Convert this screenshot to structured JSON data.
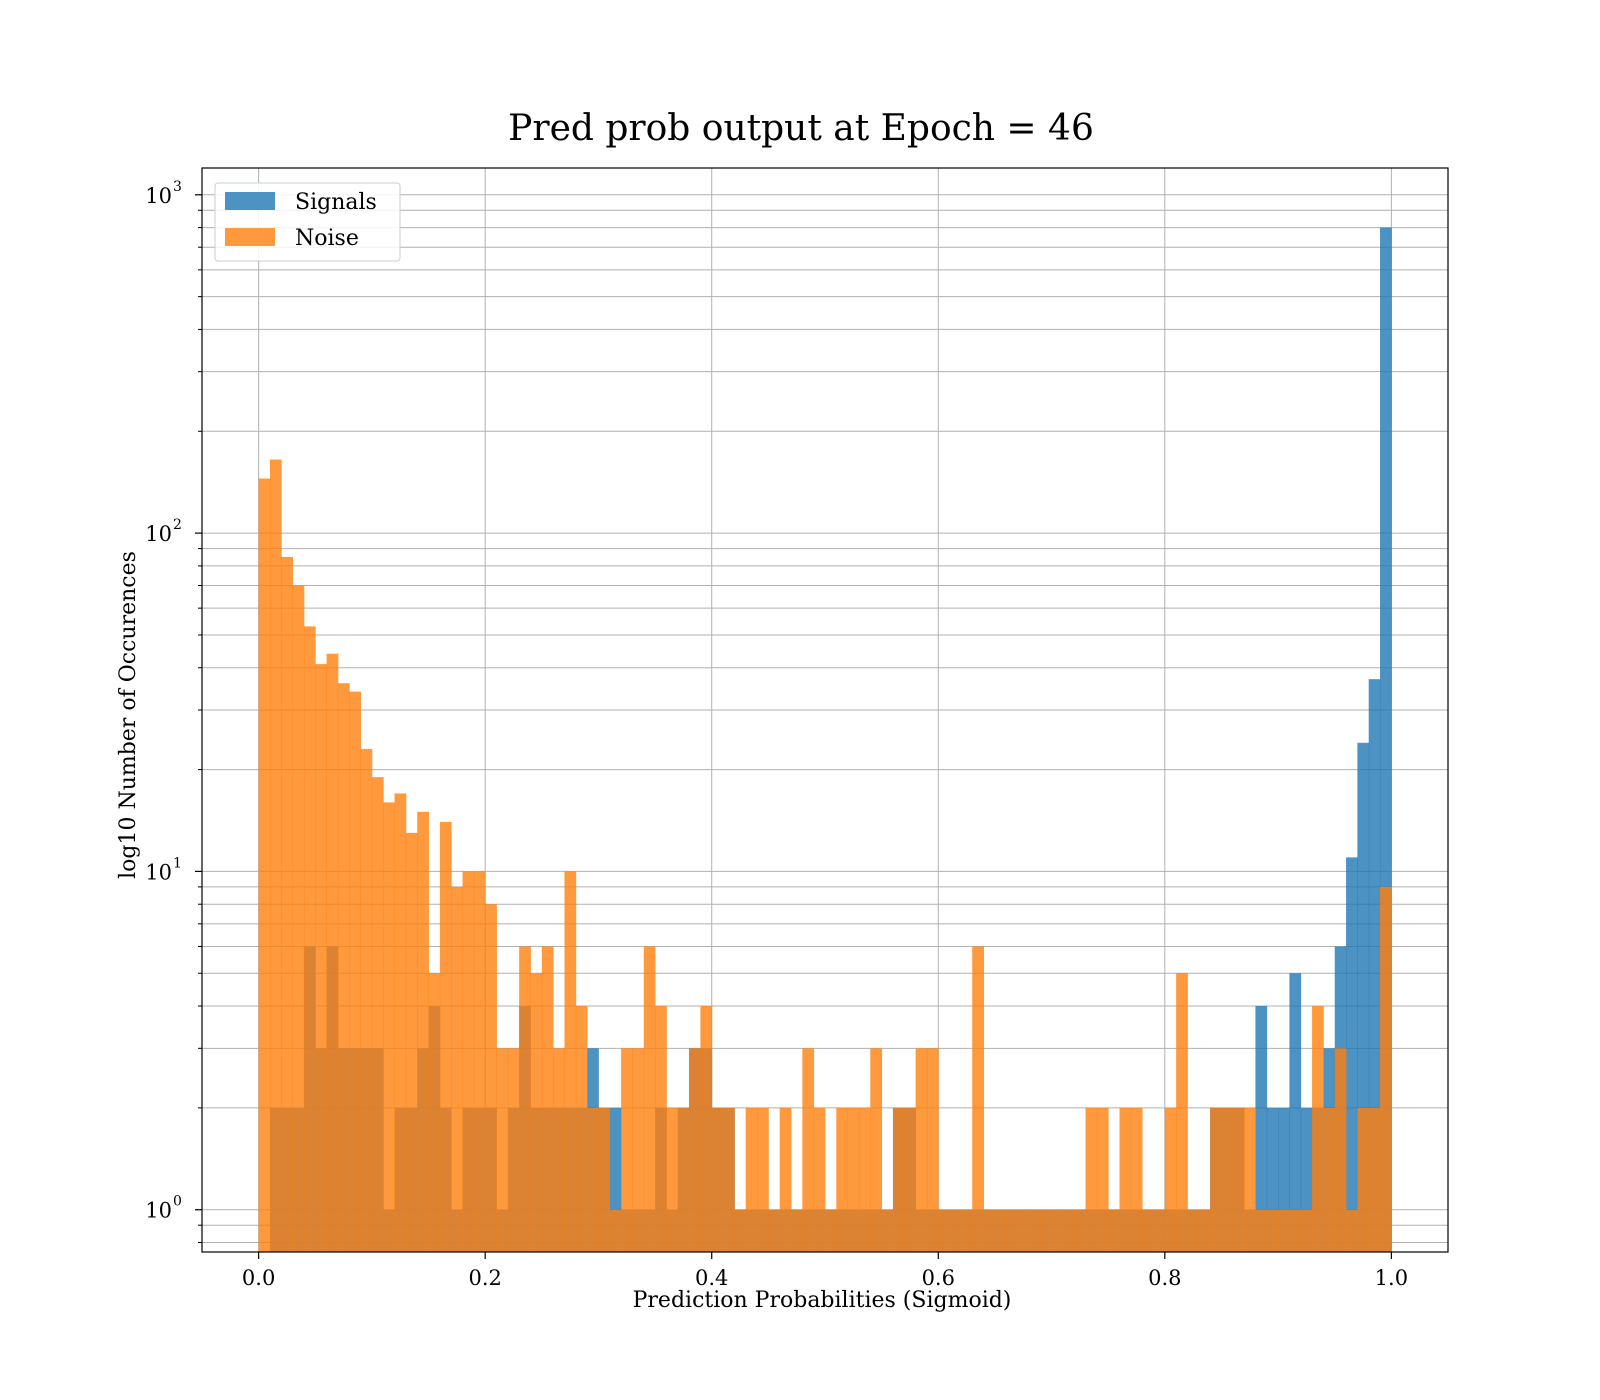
{
  "chart_data": {
    "type": "bar",
    "title": "Pred prob output at Epoch = 46",
    "xlabel": "Prediction Probabilities (Sigmoid)",
    "ylabel": "log10 Number of Occurences",
    "xlim": [
      -0.05,
      1.05
    ],
    "ylim": [
      0.75,
      1200
    ],
    "yscale": "log",
    "grid": true,
    "legend_position": "top-left",
    "x_ticks": [
      0.0,
      0.2,
      0.4,
      0.6,
      0.8,
      1.0
    ],
    "x_tick_labels": [
      "0.0",
      "0.2",
      "0.4",
      "0.6",
      "0.8",
      "1.0"
    ],
    "y_ticks": [
      1,
      10,
      100,
      1000
    ],
    "y_tick_labels": [
      {
        "base": "10",
        "exp": "0"
      },
      {
        "base": "10",
        "exp": "1"
      },
      {
        "base": "10",
        "exp": "2"
      },
      {
        "base": "10",
        "exp": "3"
      }
    ],
    "bin_edges": {
      "start": 0.0,
      "end": 1.0,
      "count": 100
    },
    "series": [
      {
        "name": "Signals",
        "color": "#1f77b4",
        "opacity": 0.8,
        "values": [
          0,
          2,
          2,
          2,
          6,
          3,
          6,
          3,
          3,
          3,
          3,
          1,
          2,
          2,
          3,
          4,
          2,
          1,
          2,
          2,
          2,
          1,
          2,
          4,
          2,
          2,
          2,
          2,
          2,
          3,
          2,
          2,
          1,
          1,
          1,
          2,
          1,
          2,
          3,
          3,
          2,
          2,
          1,
          1,
          1,
          1,
          1,
          1,
          1,
          1,
          1,
          1,
          1,
          1,
          1,
          1,
          2,
          2,
          1,
          1,
          1,
          1,
          1,
          1,
          1,
          1,
          1,
          1,
          1,
          1,
          1,
          1,
          1,
          1,
          1,
          1,
          1,
          1,
          1,
          1,
          1,
          1,
          1,
          1,
          2,
          2,
          2,
          1,
          4,
          2,
          2,
          5,
          2,
          2,
          3,
          6,
          11,
          24,
          37,
          800
        ]
      },
      {
        "name": "Noise",
        "color": "#ff7f0e",
        "opacity": 0.8,
        "values": [
          145,
          165,
          85,
          70,
          53,
          41,
          44,
          36,
          34,
          23,
          19,
          16,
          17,
          13,
          15,
          5,
          14,
          9,
          10,
          10,
          8,
          3,
          3,
          6,
          5,
          6,
          3,
          10,
          4,
          2,
          2,
          1,
          3,
          3,
          6,
          4,
          2,
          2,
          3,
          4,
          2,
          2,
          1,
          2,
          2,
          1,
          2,
          1,
          3,
          2,
          1,
          2,
          2,
          2,
          3,
          1,
          2,
          2,
          3,
          3,
          1,
          1,
          1,
          6,
          1,
          1,
          1,
          1,
          1,
          1,
          1,
          1,
          1,
          2,
          2,
          1,
          2,
          2,
          1,
          1,
          2,
          5,
          1,
          1,
          2,
          2,
          2,
          2,
          1,
          1,
          1,
          1,
          1,
          4,
          2,
          3,
          1,
          2,
          2,
          9
        ]
      }
    ]
  }
}
